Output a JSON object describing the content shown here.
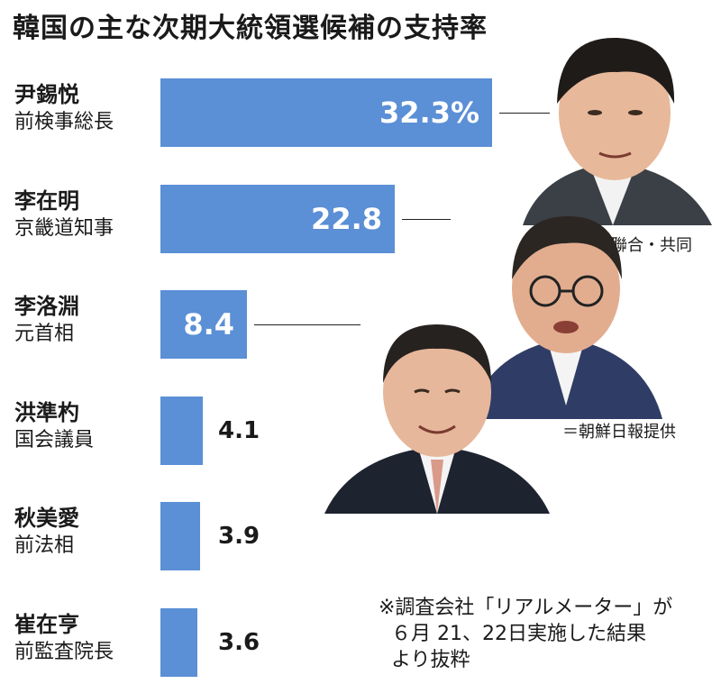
{
  "title": "韓国の主な次期大統領選候補の支持率",
  "colors": {
    "bar": "#5b8fd6",
    "text": "#1a1a1a"
  },
  "chart_data": {
    "type": "bar",
    "orientation": "horizontal",
    "title": "韓国の主な次期大統領選候補の支持率",
    "categories": [
      "尹錫悦",
      "李在明",
      "李洛淵",
      "洪準杓",
      "秋美愛",
      "崔在亨"
    ],
    "roles": [
      "前検事総長",
      "京畿道知事",
      "元首相",
      "国会議員",
      "前法相",
      "前監査院長"
    ],
    "values": [
      32.3,
      22.8,
      8.4,
      4.1,
      3.9,
      3.6
    ],
    "labels": [
      "32.3%",
      "22.8",
      "8.4",
      "4.1",
      "3.9",
      "3.6"
    ],
    "xlim": [
      0,
      35
    ]
  },
  "credits": {
    "photo1": "＝聯合・共同",
    "photo2": "＝朝鮮日報提供"
  },
  "note": {
    "line1": "※調査会社「リアルメーター」が",
    "line2": "  ６月 21、22日実施した結果",
    "line3": "  より抜粋"
  },
  "photos": [
    "person-photo-icon",
    "person-photo-icon",
    "person-photo-icon"
  ]
}
